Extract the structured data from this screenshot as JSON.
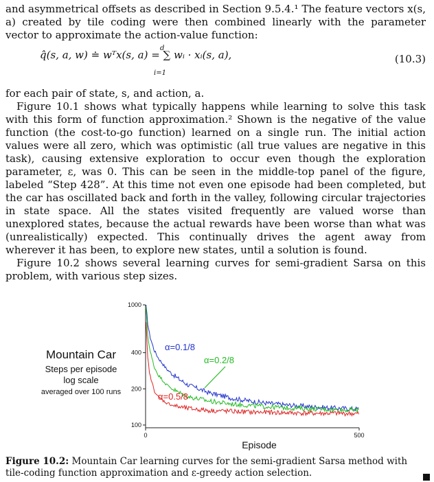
{
  "text": {
    "para1": "and asymmetrical offsets as described in Section 9.5.4.¹ The feature vectors x(s, a) created by tile coding were then combined linearly with the parameter vector to approximate the action-value function:",
    "equation": "q̂(s, a, w) ≐ wᵀx(s, a) = ∑ wᵢ · xᵢ(s, a),",
    "eq_upper": "d",
    "eq_lower": "i=1",
    "eq_number": "(10.3)",
    "para2": "for each pair of state, s, and action, a.",
    "para3": "Figure 10.1 shows what typically happens while learning to solve this task with this form of function approximation.² Shown is the negative of the value function (the cost-to-go function) learned on a single run. The initial action values were all zero, which was optimistic (all true values are negative in this task), causing extensive exploration to occur even though the exploration parameter, ε, was 0. This can be seen in the middle-top panel of the figure, labeled “Step 428”. At this time not even one episode had been completed, but the car has oscillated back and forth in the valley, following circular trajectories in state space. All the states visited frequently are valued worse than unexplored states, because the actual rewards have been worse than what was (unrealistically) expected. This continually drives the agent away from wherever it has been, to explore new states, until a solution is found.",
    "para4": "Figure 10.2 shows several learning curves for semi-gradient Sarsa on this problem, with various step sizes.",
    "caption_label": "Figure 10.2:",
    "caption_text": " Mountain Car learning curves for the semi-gradient Sarsa method with tile-coding function approximation and ε-greedy action selection."
  },
  "chart_data": {
    "type": "line",
    "title": "Mountain Car",
    "subtitle_lines": [
      "Steps per episode",
      "log scale",
      "averaged over 100 runs"
    ],
    "xlabel": "Episode",
    "ylabel": "",
    "xlim": [
      0,
      500
    ],
    "ylim": [
      100,
      1000
    ],
    "yscale": "log",
    "x_ticks": [
      "0",
      "500"
    ],
    "y_ticks": [
      "100",
      "200",
      "400",
      "1000"
    ],
    "grid": false,
    "legend": "inline-labels",
    "series": [
      {
        "name": "α=0.1/8",
        "color": "#2233cc",
        "x": [
          1,
          5,
          10,
          20,
          30,
          50,
          75,
          100,
          150,
          200,
          250,
          300,
          350,
          400,
          450,
          500
        ],
        "y": [
          1000,
          700,
          550,
          420,
          360,
          290,
          245,
          215,
          185,
          168,
          157,
          150,
          145,
          141,
          138,
          136
        ]
      },
      {
        "name": "α=0.2/8",
        "color": "#22bb22",
        "x": [
          1,
          5,
          10,
          20,
          30,
          50,
          75,
          100,
          150,
          200,
          250,
          300,
          350,
          400,
          450,
          500
        ],
        "y": [
          950,
          560,
          420,
          305,
          260,
          215,
          188,
          172,
          158,
          150,
          145,
          141,
          138,
          136,
          134,
          133
        ]
      },
      {
        "name": "α=0.5/8",
        "color": "#dd2222",
        "x": [
          1,
          5,
          10,
          20,
          30,
          50,
          75,
          100,
          150,
          200,
          250,
          300,
          350,
          400,
          450,
          500
        ],
        "y": [
          700,
          360,
          260,
          195,
          170,
          152,
          142,
          137,
          132,
          130,
          128,
          127,
          126,
          125,
          125,
          124
        ]
      }
    ]
  }
}
